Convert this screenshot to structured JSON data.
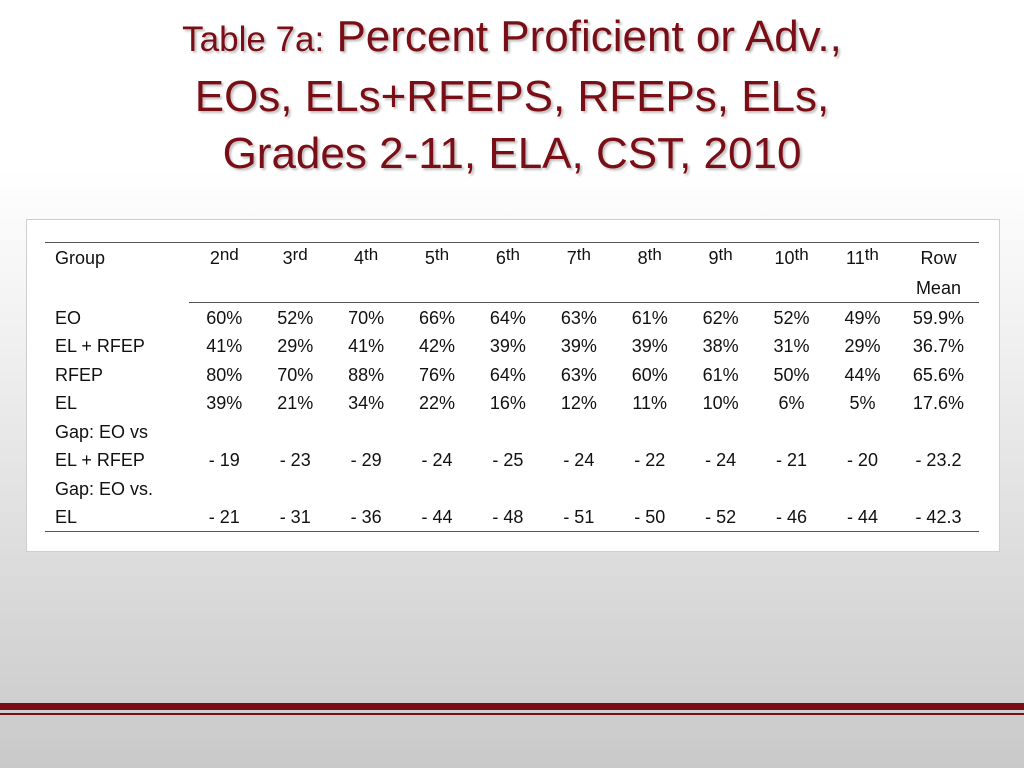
{
  "title": {
    "prefix": "Table 7a:",
    "line1": "Percent Proficient or Adv.,",
    "line2": "EOs, ELs+RFEPS, RFEPs, ELs,",
    "line3": "Grades 2-11, ELA, CST, 2010"
  },
  "table": {
    "group_header": "Group",
    "grades": [
      {
        "num": "2",
        "suf": "nd"
      },
      {
        "num": "3",
        "suf": "rd"
      },
      {
        "num": "4",
        "suf": "th"
      },
      {
        "num": "5",
        "suf": "th"
      },
      {
        "num": "6",
        "suf": "th"
      },
      {
        "num": "7",
        "suf": "th"
      },
      {
        "num": "8",
        "suf": "th"
      },
      {
        "num": "9",
        "suf": "th"
      },
      {
        "num": "10",
        "suf": "th"
      },
      {
        "num": "11",
        "suf": "th"
      }
    ],
    "row_mean_header": [
      "Row",
      "Mean"
    ],
    "rows": [
      {
        "label": "EO",
        "values": [
          "60%",
          "52%",
          "70%",
          "66%",
          "64%",
          "63%",
          "61%",
          "62%",
          "52%",
          "49%"
        ],
        "mean": "59.9%"
      },
      {
        "label": "EL + RFEP",
        "values": [
          "41%",
          "29%",
          "41%",
          "42%",
          "39%",
          "39%",
          "39%",
          "38%",
          "31%",
          "29%"
        ],
        "mean": "36.7%"
      },
      {
        "label": "RFEP",
        "values": [
          "80%",
          "70%",
          "88%",
          "76%",
          "64%",
          "63%",
          "60%",
          "61%",
          "50%",
          "44%"
        ],
        "mean": "65.6%"
      },
      {
        "label": "EL",
        "values": [
          "39%",
          "21%",
          "34%",
          "22%",
          "16%",
          "12%",
          "11%",
          "10%",
          "6%",
          "5%"
        ],
        "mean": "17.6%"
      }
    ],
    "gaps": [
      {
        "label_line1": "Gap: EO vs",
        "label_line2": "EL + RFEP",
        "values": [
          "- 19",
          "- 23",
          "- 29",
          "- 24",
          "- 25",
          "- 24",
          "- 22",
          "- 24",
          "- 21",
          "- 20"
        ],
        "mean": "- 23.2"
      },
      {
        "label_line1": "Gap: EO vs.",
        "label_line2": "EL",
        "values": [
          "- 21",
          "- 31",
          "- 36",
          "- 44",
          "- 48",
          "- 51",
          "- 50",
          "- 52",
          "- 46",
          "- 44"
        ],
        "mean": "- 42.3"
      }
    ]
  },
  "colors": {
    "title": "#7a0e16",
    "footer_bar": "#7a0e16"
  }
}
